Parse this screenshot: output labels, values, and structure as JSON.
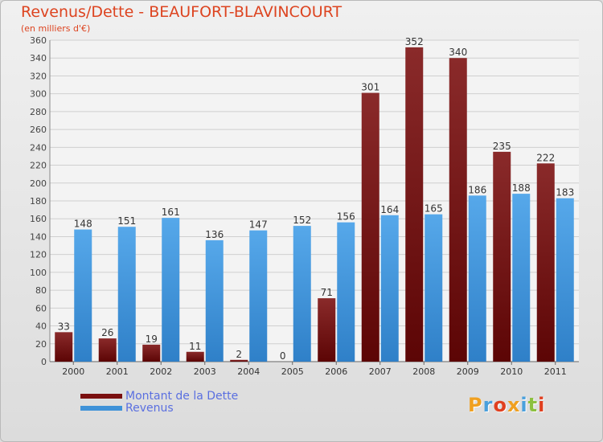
{
  "title": "Revenus/Dette - BEAUFORT-BLAVINCOURT",
  "subtitle": "(en milliers d'€)",
  "logo": {
    "text": "Proxiti",
    "colors": [
      "#f0a020",
      "#4aa0dc",
      "#e04020",
      "#f0a020",
      "#4aa0dc",
      "#8cc040",
      "#e04020"
    ]
  },
  "colors": {
    "dette": "#7a0f0f",
    "revenus": "#3f92d8",
    "title": "#dd4420",
    "legend_text": "#5a6fe0"
  },
  "chart_data": {
    "type": "bar",
    "title": "Revenus/Dette - BEAUFORT-BLAVINCOURT",
    "subtitle": "(en milliers d'€)",
    "categories": [
      "2000",
      "2001",
      "2002",
      "2003",
      "2004",
      "2005",
      "2006",
      "2007",
      "2008",
      "2009",
      "2010",
      "2011"
    ],
    "series": [
      {
        "name": "Montant de la Dette",
        "values": [
          33,
          26,
          19,
          11,
          2,
          0,
          71,
          301,
          352,
          340,
          235,
          222
        ]
      },
      {
        "name": "Revenus",
        "values": [
          148,
          151,
          161,
          136,
          147,
          152,
          156,
          164,
          165,
          186,
          188,
          183
        ]
      }
    ],
    "ylim": [
      0,
      360
    ],
    "yticks": [
      0,
      20,
      40,
      60,
      80,
      100,
      120,
      140,
      160,
      180,
      200,
      220,
      240,
      260,
      280,
      300,
      320,
      340,
      360
    ],
    "grid": true,
    "legend_position": "bottom-left"
  }
}
